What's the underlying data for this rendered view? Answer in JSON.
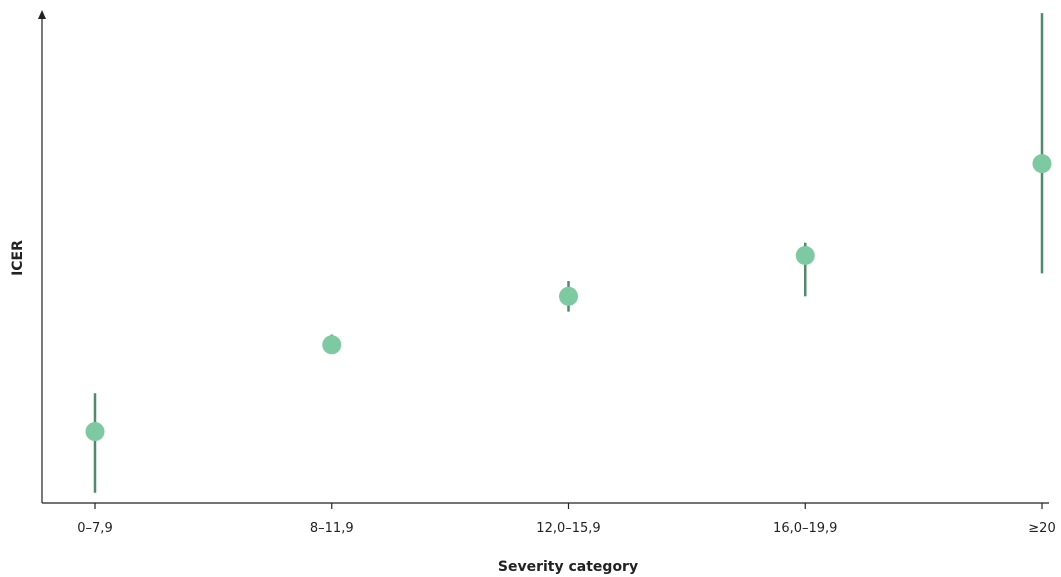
{
  "chart_data": {
    "type": "scatter",
    "title": "",
    "xlabel": "Severity category",
    "ylabel": "ICER",
    "categories": [
      "0–7,9",
      "8–11,9",
      "12,0–15,9",
      "16,0–19,9",
      "≥20"
    ],
    "series": [
      {
        "values": [
          14,
          31,
          40.5,
          48.5,
          66.5
        ],
        "lower": [
          2,
          30,
          37.5,
          40.5,
          45
        ],
        "upper": [
          21.5,
          33,
          43.5,
          51,
          96
        ]
      }
    ],
    "ylim": [
      0,
      97
    ],
    "y_ticks_shown": false,
    "grid": false,
    "legend": "none",
    "colors": {
      "point": "#7dc9a1",
      "error_bar": "#4e8a6c",
      "axis": "#222222"
    }
  }
}
